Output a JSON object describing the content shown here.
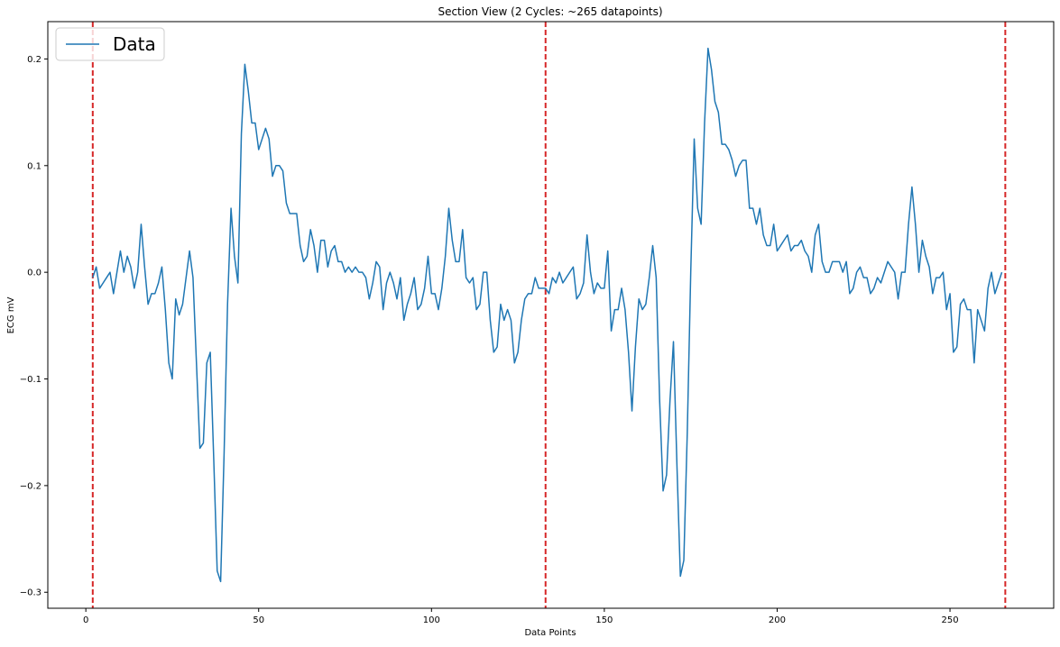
{
  "chart_data": {
    "type": "line",
    "title": "Section View (2 Cycles: ~265 datapoints)",
    "xlabel": "Data Points",
    "ylabel": "ECG mV",
    "xlim": [
      -11,
      280
    ],
    "ylim": [
      -0.315,
      0.235
    ],
    "xticks": [
      0,
      50,
      100,
      150,
      200,
      250
    ],
    "yticks": [
      -0.3,
      -0.2,
      -0.1,
      0.0,
      0.1,
      0.2
    ],
    "xtick_labels": [
      "0",
      "50",
      "100",
      "150",
      "200",
      "250"
    ],
    "ytick_labels": [
      "−0.3",
      "−0.2",
      "−0.1",
      "0.0",
      "0.1",
      "0.2"
    ],
    "grid": false,
    "legend_position": "top-left",
    "line_color": "#1f77b4",
    "cycle_marker_color": "#d62728",
    "cycle_markers_x": [
      2,
      133,
      266
    ],
    "series": [
      {
        "name": "Data",
        "x_start": 2,
        "values": [
          -0.005,
          0.005,
          -0.015,
          -0.01,
          -0.005,
          0.0,
          -0.02,
          0.0,
          0.02,
          0.0,
          0.015,
          0.005,
          -0.015,
          0.0,
          0.045,
          0.005,
          -0.03,
          -0.02,
          -0.02,
          -0.01,
          0.005,
          -0.035,
          -0.085,
          -0.1,
          -0.025,
          -0.04,
          -0.03,
          -0.005,
          0.02,
          -0.005,
          -0.085,
          -0.165,
          -0.16,
          -0.085,
          -0.075,
          -0.175,
          -0.28,
          -0.29,
          -0.17,
          -0.03,
          0.06,
          0.015,
          -0.01,
          0.13,
          0.195,
          0.17,
          0.14,
          0.14,
          0.115,
          0.125,
          0.135,
          0.125,
          0.09,
          0.1,
          0.1,
          0.095,
          0.065,
          0.055,
          0.055,
          0.055,
          0.025,
          0.01,
          0.015,
          0.04,
          0.025,
          0.0,
          0.03,
          0.03,
          0.005,
          0.02,
          0.025,
          0.01,
          0.01,
          0.0,
          0.005,
          0.0,
          0.005,
          0.0,
          0.0,
          -0.005,
          -0.025,
          -0.01,
          0.01,
          0.005,
          -0.035,
          -0.01,
          0.0,
          -0.01,
          -0.025,
          -0.005,
          -0.045,
          -0.03,
          -0.02,
          -0.005,
          -0.035,
          -0.03,
          -0.015,
          0.015,
          -0.02,
          -0.02,
          -0.035,
          -0.015,
          0.015,
          0.06,
          0.03,
          0.01,
          0.01,
          0.04,
          -0.005,
          -0.01,
          -0.005,
          -0.035,
          -0.03,
          0.0,
          0.0,
          -0.045,
          -0.075,
          -0.07,
          -0.03,
          -0.045,
          -0.035,
          -0.045,
          -0.085,
          -0.075,
          -0.045,
          -0.025,
          -0.02,
          -0.02,
          -0.005,
          -0.015,
          -0.015,
          -0.015,
          -0.02,
          -0.005,
          -0.01,
          0.0,
          -0.01,
          -0.005,
          0.0,
          0.005,
          -0.025,
          -0.02,
          -0.01,
          0.035,
          0.0,
          -0.02,
          -0.01,
          -0.015,
          -0.015,
          0.02,
          -0.055,
          -0.035,
          -0.035,
          -0.015,
          -0.035,
          -0.075,
          -0.13,
          -0.07,
          -0.025,
          -0.035,
          -0.03,
          -0.005,
          0.025,
          -0.005,
          -0.12,
          -0.205,
          -0.19,
          -0.12,
          -0.065,
          -0.18,
          -0.285,
          -0.27,
          -0.15,
          0.0,
          0.125,
          0.06,
          0.045,
          0.14,
          0.21,
          0.19,
          0.16,
          0.15,
          0.12,
          0.12,
          0.115,
          0.105,
          0.09,
          0.1,
          0.105,
          0.105,
          0.06,
          0.06,
          0.045,
          0.06,
          0.035,
          0.025,
          0.025,
          0.045,
          0.02,
          0.025,
          0.03,
          0.035,
          0.02,
          0.025,
          0.025,
          0.03,
          0.02,
          0.015,
          0.0,
          0.035,
          0.045,
          0.01,
          0.0,
          0.0,
          0.01,
          0.01,
          0.01,
          0.0,
          0.01,
          -0.02,
          -0.015,
          0.0,
          0.005,
          -0.005,
          -0.005,
          -0.02,
          -0.015,
          -0.005,
          -0.01,
          0.0,
          0.01,
          0.005,
          0.0,
          -0.025,
          0.0,
          0.0,
          0.045,
          0.08,
          0.045,
          0.0,
          0.03,
          0.015,
          0.005,
          -0.02,
          -0.005,
          -0.005,
          0.0,
          -0.035,
          -0.02,
          -0.075,
          -0.07,
          -0.03,
          -0.025,
          -0.035,
          -0.035,
          -0.085,
          -0.035,
          -0.045,
          -0.055,
          -0.015,
          0.0,
          -0.02,
          -0.01,
          0.0
        ]
      }
    ]
  }
}
